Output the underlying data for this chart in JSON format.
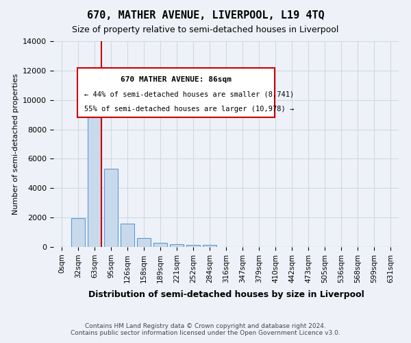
{
  "title": "670, MATHER AVENUE, LIVERPOOL, L19 4TQ",
  "subtitle": "Size of property relative to semi-detached houses in Liverpool",
  "xlabel": "Distribution of semi-detached houses by size in Liverpool",
  "ylabel": "Number of semi-detached properties",
  "footer_line1": "Contains HM Land Registry data © Crown copyright and database right 2024.",
  "footer_line2": "Contains public sector information licensed under the Open Government Licence v3.0.",
  "bin_labels": [
    "0sqm",
    "32sqm",
    "63sqm",
    "95sqm",
    "126sqm",
    "158sqm",
    "189sqm",
    "221sqm",
    "252sqm",
    "284sqm",
    "316sqm",
    "347sqm",
    "379sqm",
    "410sqm",
    "442sqm",
    "473sqm",
    "505sqm",
    "536sqm",
    "568sqm",
    "599sqm",
    "631sqm"
  ],
  "bar_values": [
    0,
    1950,
    10100,
    5300,
    1600,
    600,
    300,
    200,
    150,
    150,
    0,
    0,
    0,
    0,
    0,
    0,
    0,
    0,
    0,
    0,
    0
  ],
  "bar_color": "#c9d9ec",
  "bar_edge_color": "#5b9bd5",
  "grid_color": "#d0d8e4",
  "background_color": "#eef2f8",
  "ylim": [
    0,
    14000
  ],
  "yticks": [
    0,
    2000,
    4000,
    6000,
    8000,
    10000,
    12000,
    14000
  ],
  "property_bin_index": 2,
  "red_line_color": "#cc0000",
  "annotation_text_line1": "670 MATHER AVENUE: 86sqm",
  "annotation_text_line2": "← 44% of semi-detached houses are smaller (8,741)",
  "annotation_text_line3": "55% of semi-detached houses are larger (10,978) →",
  "annotation_box_color": "#ffffff",
  "annotation_box_edge": "#cc0000"
}
